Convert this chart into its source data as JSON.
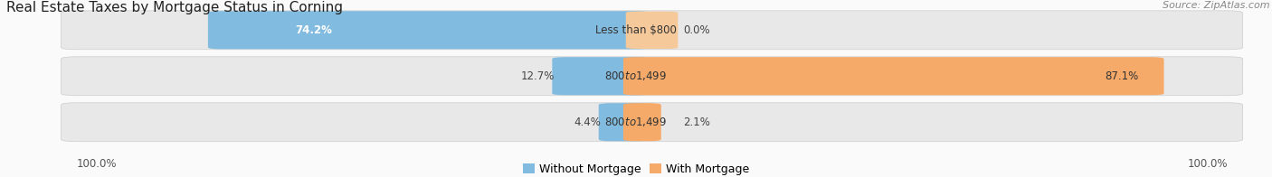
{
  "title": "Real Estate Taxes by Mortgage Status in Corning",
  "source": "Source: ZipAtlas.com",
  "rows": [
    {
      "label": "Less than $800",
      "without_mortgage": 74.2,
      "with_mortgage": 0.0,
      "left_label": "74.2%",
      "right_label": "0.0%"
    },
    {
      "label": "$800 to $1,499",
      "without_mortgage": 12.7,
      "with_mortgage": 87.1,
      "left_label": "12.7%",
      "right_label": "87.1%"
    },
    {
      "label": "$800 to $1,499",
      "without_mortgage": 4.4,
      "with_mortgage": 2.1,
      "left_label": "4.4%",
      "right_label": "2.1%"
    }
  ],
  "color_without": "#82BBE0",
  "color_with": "#F5AA6A",
  "color_with_light": "#F5C99A",
  "bg_bar": "#E8E8E8",
  "bg_figure": "#FAFAFA",
  "axis_label_left": "100.0%",
  "axis_label_right": "100.0%",
  "max_val": 100.0,
  "title_fontsize": 11,
  "source_fontsize": 8,
  "legend_fontsize": 9,
  "bar_label_fontsize": 8.5,
  "row_label_fontsize": 8.5,
  "axis_tick_fontsize": 8.5
}
